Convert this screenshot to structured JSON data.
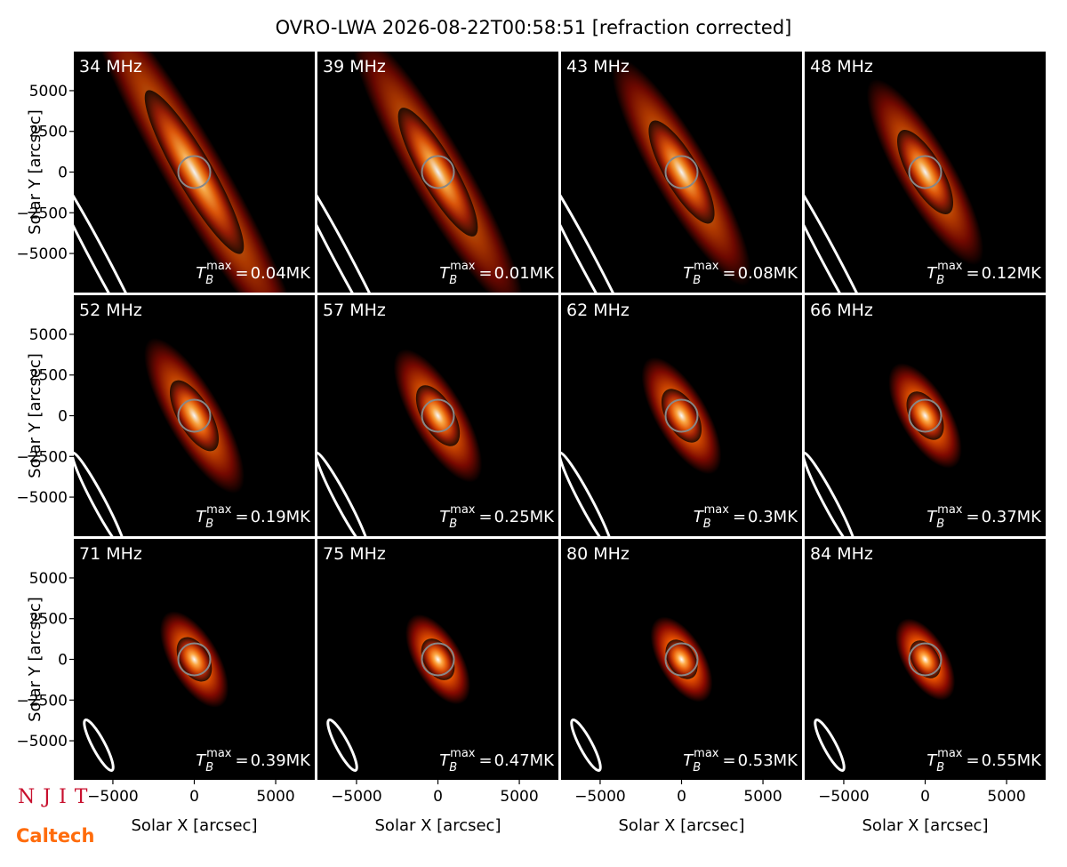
{
  "chart_data": {
    "type": "image-grid",
    "title": "OVRO-LWA 2026-08-22T00:58:51 [refraction corrected]",
    "x_label": "Solar X [arcsec]",
    "y_label": "Solar Y [arcsec]",
    "xlim": [
      -7400,
      7400
    ],
    "ylim": [
      -7400,
      7400
    ],
    "xticks": [
      {
        "value": -5000,
        "label": "−5000"
      },
      0,
      5000
    ],
    "yticks": [
      {
        "value": -5000,
        "label": "−5000"
      },
      {
        "value": -2500,
        "label": "−2500"
      },
      0,
      2500,
      5000
    ],
    "tb_symbol": {
      "base": "T",
      "sub": "B",
      "sup": "max",
      "sign": "="
    },
    "frequencies": [
      "34 MHz",
      "39 MHz",
      "43 MHz",
      "48 MHz",
      "52 MHz",
      "57 MHz",
      "62 MHz",
      "66 MHz",
      "71 MHz",
      "75 MHz",
      "80 MHz",
      "84 MHz"
    ],
    "tb_max": {
      "values": [
        0.04,
        0.01,
        0.08,
        0.12,
        0.19,
        0.25,
        0.3,
        0.37,
        0.39,
        0.47,
        0.53,
        0.55
      ],
      "value_labels": [
        "0.04MK",
        "0.01MK",
        "0.08MK",
        "0.12MK",
        "0.19MK",
        "0.25MK",
        "0.3MK",
        "0.37MK",
        "0.39MK",
        "0.47MK",
        "0.53MK",
        "0.55MK"
      ]
    },
    "colormap": [
      "#ffffff",
      "#ffa030",
      "#e04a00",
      "#8b0a00",
      "#000000"
    ]
  },
  "logos": {
    "njit": "NJIT",
    "caltech": "Caltech"
  }
}
